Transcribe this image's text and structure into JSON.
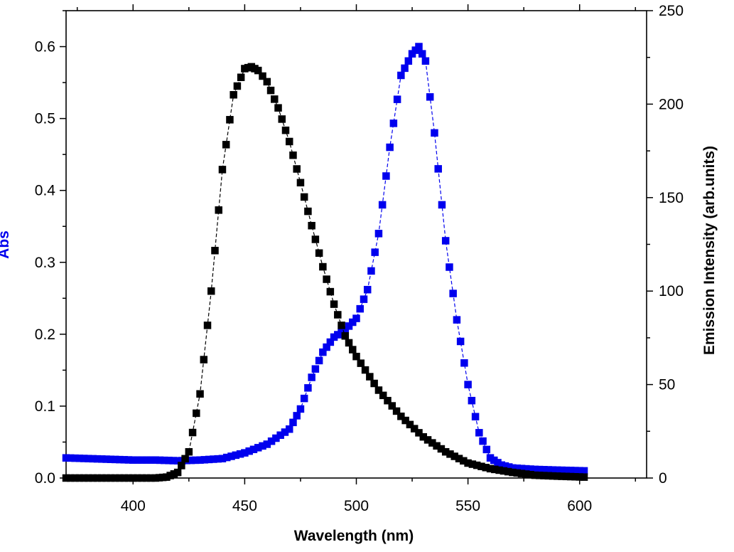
{
  "chart_data": {
    "type": "scatter",
    "title": "",
    "xlabel": "Wavelength (nm)",
    "ylabel_left": "Abs",
    "ylabel_right": "Emission Intensity (arb.units)",
    "xlim": [
      370,
      630
    ],
    "ylim_left": [
      0,
      0.65
    ],
    "ylim_right": [
      0,
      250
    ],
    "x_ticks": [
      400,
      450,
      500,
      550,
      600
    ],
    "y_left_ticks": [
      0.0,
      0.1,
      0.2,
      0.3,
      0.4,
      0.5,
      0.6
    ],
    "y_left_tick_labels": [
      "0.0",
      "0.1",
      "0.2",
      "0.3",
      "0.4",
      "0.5",
      "0.6"
    ],
    "y_right_ticks": [
      0,
      50,
      100,
      150,
      200,
      250
    ],
    "grid": false,
    "legend": "none",
    "series": [
      {
        "axis": "left",
        "color": "#0000ee",
        "marker": "square",
        "x": [
          370,
          380,
          390,
          400,
          410,
          420,
          430,
          440,
          450,
          460,
          470,
          475,
          480,
          485,
          490,
          495,
          500,
          505,
          510,
          515,
          520,
          525,
          528,
          531,
          535,
          540,
          545,
          550,
          555,
          560,
          565,
          570,
          580,
          590,
          602
        ],
        "y": [
          0.028,
          0.027,
          0.026,
          0.025,
          0.025,
          0.024,
          0.025,
          0.027,
          0.035,
          0.047,
          0.068,
          0.096,
          0.14,
          0.175,
          0.196,
          0.206,
          0.222,
          0.262,
          0.34,
          0.46,
          0.56,
          0.59,
          0.6,
          0.58,
          0.48,
          0.33,
          0.22,
          0.13,
          0.063,
          0.028,
          0.018,
          0.014,
          0.012,
          0.011,
          0.01
        ]
      },
      {
        "axis": "right",
        "color": "#000000",
        "marker": "square",
        "x": [
          370,
          400,
          410,
          415,
          420,
          425,
          430,
          435,
          440,
          445,
          450,
          453,
          456,
          460,
          465,
          470,
          475,
          480,
          485,
          490,
          495,
          500,
          510,
          520,
          530,
          540,
          550,
          560,
          570,
          580,
          590,
          602
        ],
        "y": [
          0,
          0,
          0,
          0.5,
          3,
          14,
          45,
          100,
          165,
          205,
          219,
          220,
          218,
          212,
          198,
          180,
          158,
          135,
          113,
          93,
          76,
          65,
          47,
          33,
          22,
          14,
          8,
          5,
          3,
          1.5,
          1,
          0.5
        ]
      }
    ]
  }
}
